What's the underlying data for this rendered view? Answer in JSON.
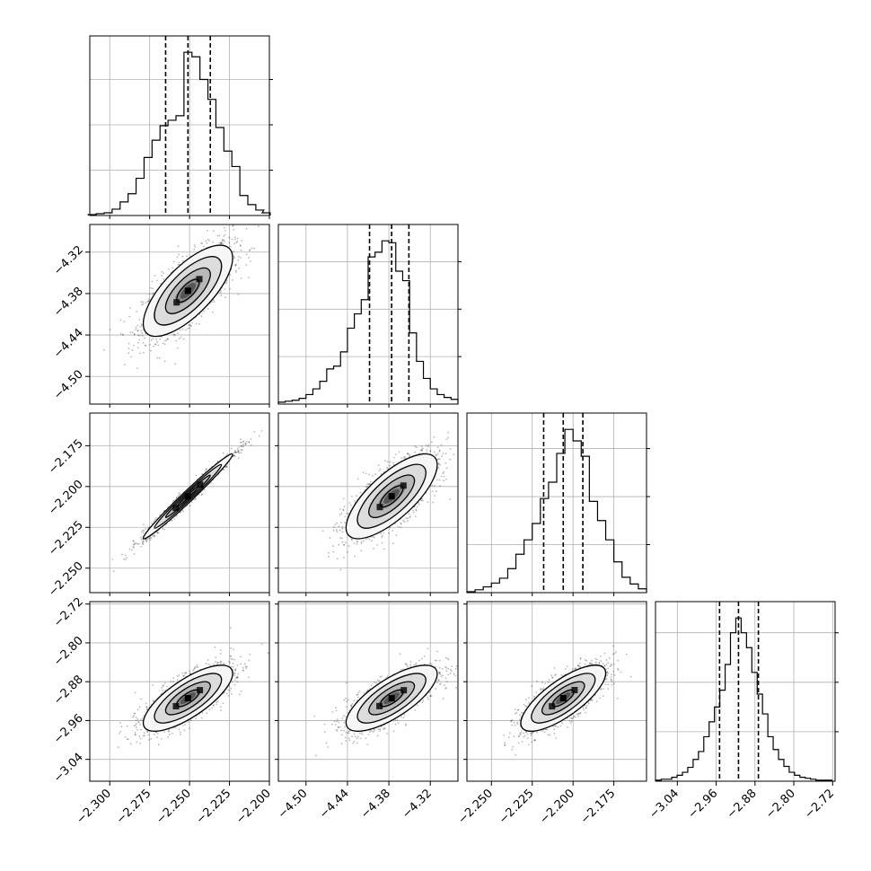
{
  "chart_data": {
    "type": "corner",
    "title": "",
    "grid": true,
    "n_params": 4,
    "params": [
      {
        "range": [
          -2.3125,
          -2.2
        ],
        "ticks": [
          -2.3,
          -2.275,
          -2.25,
          -2.225,
          -2.2
        ],
        "tick_labels": [
          "−2.300",
          "−2.275",
          "−2.250",
          "−2.225",
          "−2.200"
        ],
        "quantiles": [
          -2.265,
          -2.251,
          -2.237
        ],
        "hist_centers": [
          -2.311,
          -2.306,
          -2.301,
          -2.296,
          -2.291,
          -2.286,
          -2.281,
          -2.276,
          -2.271,
          -2.266,
          -2.261,
          -2.256,
          -2.251,
          -2.246,
          -2.241,
          -2.236,
          -2.231,
          -2.226,
          -2.221,
          -2.216,
          -2.211,
          -2.206,
          -2.202
        ],
        "hist_counts": [
          1,
          2,
          3,
          7,
          15,
          24,
          41,
          64,
          83,
          99,
          105,
          110,
          180,
          175,
          150,
          128,
          97,
          71,
          54,
          22,
          12,
          6,
          3
        ]
      },
      {
        "range": [
          -4.54,
          -4.28
        ],
        "ticks": [
          -4.5,
          -4.44,
          -4.38,
          -4.32
        ],
        "tick_labels": [
          "−4.50",
          "−4.44",
          "−4.38",
          "−4.32"
        ],
        "quantiles": [
          -4.408,
          -4.376,
          -4.351
        ],
        "hist_centers": [
          -4.535,
          -4.525,
          -4.515,
          -4.505,
          -4.495,
          -4.485,
          -4.475,
          -4.465,
          -4.455,
          -4.445,
          -4.435,
          -4.425,
          -4.415,
          -4.405,
          -4.395,
          -4.385,
          -4.375,
          -4.365,
          -4.355,
          -4.345,
          -4.335,
          -4.325,
          -4.315,
          -4.305,
          -4.295,
          -4.285
        ],
        "hist_counts": [
          2,
          3,
          4,
          6,
          10,
          16,
          24,
          37,
          40,
          55,
          80,
          95,
          110,
          155,
          160,
          172,
          170,
          140,
          130,
          75,
          45,
          27,
          16,
          10,
          7,
          5
        ]
      },
      {
        "range": [
          -2.265,
          -2.155
        ],
        "ticks": [
          -2.25,
          -2.225,
          -2.2,
          -2.175
        ],
        "tick_labels": [
          "−2.250",
          "−2.225",
          "−2.200",
          "−2.175"
        ],
        "quantiles": [
          -2.218,
          -2.206,
          -2.194
        ],
        "hist_centers": [
          -2.2625,
          -2.2575,
          -2.2525,
          -2.2475,
          -2.2425,
          -2.2375,
          -2.2325,
          -2.2275,
          -2.2225,
          -2.2175,
          -2.2125,
          -2.2075,
          -2.2025,
          -2.1975,
          -2.1925,
          -2.1875,
          -2.1825,
          -2.1775,
          -2.1725,
          -2.1675,
          -2.1625,
          -2.1575
        ],
        "hist_counts": [
          1,
          3,
          6,
          10,
          15,
          25,
          40,
          55,
          72,
          98,
          115,
          145,
          170,
          158,
          142,
          95,
          75,
          55,
          32,
          16,
          9,
          4
        ]
      },
      {
        "range": [
          -3.085,
          -2.715
        ],
        "ticks": [
          -3.04,
          -2.96,
          -2.88,
          -2.8,
          -2.72
        ],
        "tick_labels": [
          "−3.04",
          "−2.96",
          "−2.88",
          "−2.80",
          "−2.72"
        ],
        "quantiles": [
          -2.953,
          -2.914,
          -2.873
        ],
        "hist_centers": [
          -3.079,
          -3.068,
          -3.057,
          -3.046,
          -3.035,
          -3.024,
          -3.013,
          -3.002,
          -2.991,
          -2.98,
          -2.969,
          -2.958,
          -2.947,
          -2.936,
          -2.925,
          -2.914,
          -2.903,
          -2.892,
          -2.881,
          -2.87,
          -2.859,
          -2.848,
          -2.837,
          -2.826,
          -2.815,
          -2.804,
          -2.793,
          -2.782,
          -2.771,
          -2.76,
          -2.749,
          -2.738,
          -2.727
        ],
        "hist_counts": [
          1,
          2,
          2,
          4,
          6,
          9,
          14,
          22,
          30,
          45,
          60,
          75,
          92,
          118,
          150,
          165,
          150,
          135,
          110,
          88,
          68,
          45,
          32,
          22,
          15,
          9,
          6,
          4,
          3,
          2,
          1,
          1,
          1
        ]
      }
    ],
    "pairs": [
      {
        "i": 1,
        "j": 0,
        "mean": [
          -2.251,
          -4.376
        ],
        "sd": [
          0.014,
          0.033
        ],
        "rho": 0.72
      },
      {
        "i": 2,
        "j": 0,
        "mean": [
          -2.251,
          -2.206
        ],
        "sd": [
          0.014,
          0.013
        ],
        "rho": 0.985
      },
      {
        "i": 2,
        "j": 1,
        "mean": [
          -4.376,
          -2.206
        ],
        "sd": [
          0.033,
          0.013
        ],
        "rho": 0.74
      },
      {
        "i": 3,
        "j": 0,
        "mean": [
          -2.251,
          -2.914
        ],
        "sd": [
          0.014,
          0.034
        ],
        "rho": 0.75
      },
      {
        "i": 3,
        "j": 1,
        "mean": [
          -4.376,
          -2.914
        ],
        "sd": [
          0.033,
          0.034
        ],
        "rho": 0.74
      },
      {
        "i": 3,
        "j": 2,
        "mean": [
          -2.206,
          -2.914
        ],
        "sd": [
          0.013,
          0.034
        ],
        "rho": 0.76
      }
    ],
    "contour_levels": [
      0.5,
      1.0,
      1.5,
      2.0
    ],
    "colors": {
      "line": "#000000",
      "grid": "#b0b0b0",
      "points": "#000000",
      "fill_light": "#f4f4f4",
      "fill_dark": "#111111"
    }
  }
}
